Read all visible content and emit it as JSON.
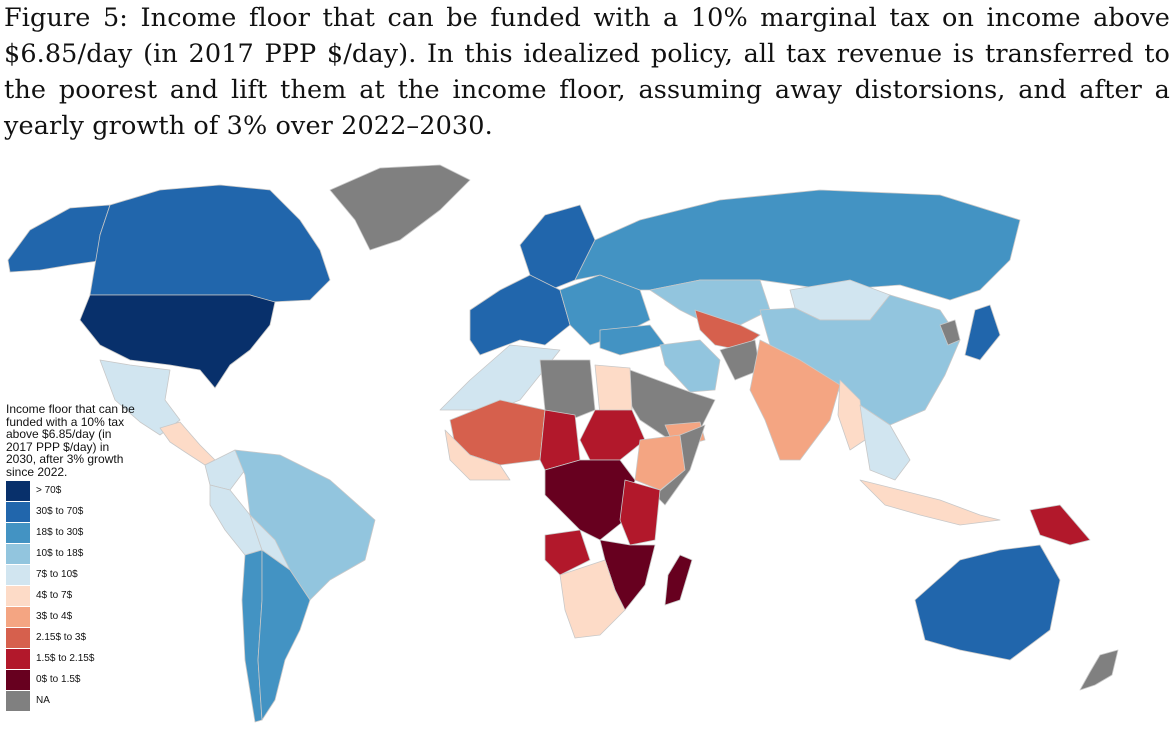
{
  "caption": "Figure 5: Income floor that can be funded with a 10% marginal tax on income above $6.85/day (in 2017 PPP $/day). In this idealized policy, all tax revenue is transferred to the poorest and lift them at the income floor, assuming away distorsions, and after a yearly growth of 3% over 2022–2030.",
  "legend": {
    "title": "Income floor that can be funded with a 10% tax above $6.85/day (in 2017 PPP $/day) in 2030, after 3% growth since 2022.",
    "items": [
      {
        "label": "> 70$",
        "color": "#08306b"
      },
      {
        "label": "30$ to 70$",
        "color": "#2166ac"
      },
      {
        "label": "18$ to 30$",
        "color": "#4393c3"
      },
      {
        "label": "10$ to 18$",
        "color": "#92c5de"
      },
      {
        "label": "7$ to 10$",
        "color": "#d1e5f0"
      },
      {
        "label": "4$ to 7$",
        "color": "#fddbc7"
      },
      {
        "label": "3$ to 4$",
        "color": "#f4a582"
      },
      {
        "label": "2.15$ to 3$",
        "color": "#d6604d"
      },
      {
        "label": "1.5$ to 2.15$",
        "color": "#b2182b"
      },
      {
        "label": "0$ to 1.5$",
        "color": "#67001f"
      },
      {
        "label": "NA",
        "color": "#808080"
      }
    ]
  },
  "regions": [
    {
      "name": "alaska",
      "category": "30$ to 70$"
    },
    {
      "name": "canada",
      "category": "30$ to 70$"
    },
    {
      "name": "usa",
      "category": "> 70$"
    },
    {
      "name": "greenland",
      "category": "NA"
    },
    {
      "name": "mexico",
      "category": "7$ to 10$"
    },
    {
      "name": "central-america",
      "category": "4$ to 7$"
    },
    {
      "name": "south-america-north",
      "category": "10$ to 18$"
    },
    {
      "name": "colombia",
      "category": "7$ to 10$"
    },
    {
      "name": "peru",
      "category": "7$ to 10$"
    },
    {
      "name": "bolivia",
      "category": "7$ to 10$"
    },
    {
      "name": "chile",
      "category": "18$ to 30$"
    },
    {
      "name": "argentina",
      "category": "18$ to 30$"
    },
    {
      "name": "scandinavia",
      "category": "30$ to 70$"
    },
    {
      "name": "western-europe",
      "category": "30$ to 70$"
    },
    {
      "name": "eastern-europe",
      "category": "18$ to 30$"
    },
    {
      "name": "russia",
      "category": "18$ to 30$"
    },
    {
      "name": "kazakhstan",
      "category": "10$ to 18$"
    },
    {
      "name": "mongolia",
      "category": "7$ to 10$"
    },
    {
      "name": "china",
      "category": "10$ to 18$"
    },
    {
      "name": "japan",
      "category": "30$ to 70$"
    },
    {
      "name": "north-korea",
      "category": "NA"
    },
    {
      "name": "turkey",
      "category": "18$ to 30$"
    },
    {
      "name": "iran",
      "category": "10$ to 18$"
    },
    {
      "name": "central-asia",
      "category": "2.15$ to 3$"
    },
    {
      "name": "afghanistan",
      "category": "NA"
    },
    {
      "name": "south-asia",
      "category": "3$ to 4$"
    },
    {
      "name": "southeast-asia",
      "category": "7$ to 10$"
    },
    {
      "name": "myanmar",
      "category": "4$ to 7$"
    },
    {
      "name": "arabia",
      "category": "NA"
    },
    {
      "name": "yemen",
      "category": "3$ to 4$"
    },
    {
      "name": "north-africa",
      "category": "7$ to 10$"
    },
    {
      "name": "libya",
      "category": "NA"
    },
    {
      "name": "egypt",
      "category": "4$ to 7$"
    },
    {
      "name": "sahel-west",
      "category": "2.15$ to 3$"
    },
    {
      "name": "sahel-central",
      "category": "1.5$ to 2.15$"
    },
    {
      "name": "sudan",
      "category": "1.5$ to 2.15$"
    },
    {
      "name": "west-africa-coast",
      "category": "4$ to 7$"
    },
    {
      "name": "horn-of-africa",
      "category": "3$ to 4$"
    },
    {
      "name": "somalia",
      "category": "NA"
    },
    {
      "name": "central-africa",
      "category": "0$ to 1.5$"
    },
    {
      "name": "east-africa",
      "category": "1.5$ to 2.15$"
    },
    {
      "name": "angola",
      "category": "1.5$ to 2.15$"
    },
    {
      "name": "southern-africa",
      "category": "4$ to 7$"
    },
    {
      "name": "mozambique",
      "category": "0$ to 1.5$"
    },
    {
      "name": "madagascar",
      "category": "0$ to 1.5$"
    },
    {
      "name": "indonesia",
      "category": "4$ to 7$"
    },
    {
      "name": "papua-new-guinea",
      "category": "1.5$ to 2.15$"
    },
    {
      "name": "australia",
      "category": "30$ to 70$"
    },
    {
      "name": "new-zealand",
      "category": "NA"
    }
  ]
}
